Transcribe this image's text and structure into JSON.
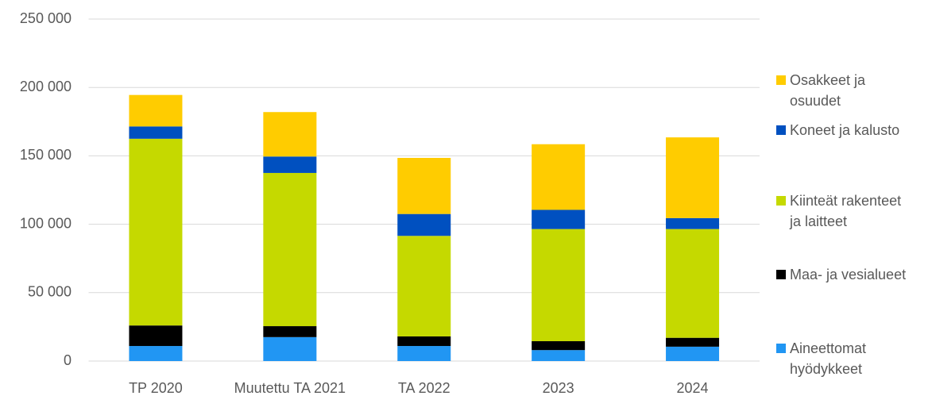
{
  "chart_data": {
    "type": "stacked_bar",
    "categories": [
      "TP 2020",
      "Muutettu TA 2021",
      "TA 2022",
      "2023",
      "2024"
    ],
    "series": [
      {
        "name": "Aineettomat hyödykkeet",
        "color": "#2196f3",
        "values": [
          11000,
          17500,
          11000,
          8000,
          10500
        ]
      },
      {
        "name": "Maa- ja vesialueet",
        "color": "#000000",
        "values": [
          15000,
          8000,
          7000,
          6500,
          6500
        ]
      },
      {
        "name": "Kiinteät rakenteet ja laitteet",
        "color": "#c5d900",
        "values": [
          136500,
          112000,
          73500,
          82000,
          79500
        ]
      },
      {
        "name": "Koneet ja kalusto",
        "color": "#0050c0",
        "values": [
          9000,
          12000,
          16000,
          14000,
          8000
        ]
      },
      {
        "name": "Osakkeet ja osuudet",
        "color": "#ffcc00",
        "values": [
          23000,
          32500,
          41000,
          48000,
          59000
        ]
      }
    ],
    "ylim": [
      0,
      250000
    ],
    "yticks": [
      0,
      {
        "value": 50000,
        "label": "50 000"
      },
      {
        "value": 100000,
        "label": "100 000"
      },
      {
        "value": 150000,
        "label": "150 000"
      },
      {
        "value": 200000,
        "label": "200 000"
      },
      {
        "value": 250000,
        "label": "250 000"
      }
    ],
    "grid": true,
    "legend": "right"
  }
}
